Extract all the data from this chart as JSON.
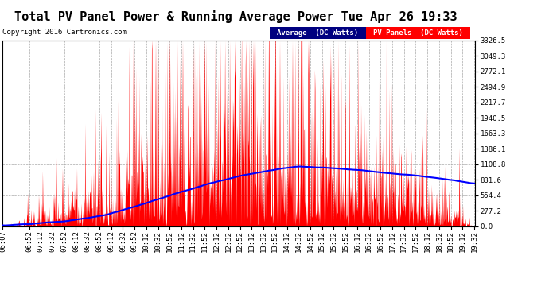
{
  "title": "Total PV Panel Power & Running Average Power Tue Apr 26 19:33",
  "copyright": "Copyright 2016 Cartronics.com",
  "ylabel_right_values": [
    3326.5,
    3049.3,
    2772.1,
    2494.9,
    2217.7,
    1940.5,
    1663.3,
    1386.1,
    1108.8,
    831.6,
    554.4,
    277.2,
    0.0
  ],
  "ymax": 3326.5,
  "ymin": 0.0,
  "bg_color": "#ffffff",
  "plot_bg_color": "#ffffff",
  "grid_color": "#aaaaaa",
  "pv_color": "#ff0000",
  "avg_color": "#0000ff",
  "legend_avg_bg": "#000080",
  "legend_pv_bg": "#ff0000",
  "legend_avg_text": "Average  (DC Watts)",
  "legend_pv_text": "PV Panels  (DC Watts)",
  "title_fontsize": 11,
  "copyright_fontsize": 6.5,
  "tick_fontsize": 6.5,
  "x_tick_labels": [
    "06:07",
    "06:52",
    "07:12",
    "07:32",
    "07:52",
    "08:12",
    "08:32",
    "08:52",
    "09:12",
    "09:32",
    "09:52",
    "10:12",
    "10:32",
    "10:52",
    "11:12",
    "11:32",
    "11:52",
    "12:12",
    "12:32",
    "12:52",
    "13:12",
    "13:32",
    "13:52",
    "14:12",
    "14:32",
    "14:52",
    "15:12",
    "15:32",
    "15:52",
    "16:12",
    "16:32",
    "16:52",
    "17:12",
    "17:32",
    "17:52",
    "18:12",
    "18:32",
    "18:52",
    "19:12",
    "19:32"
  ]
}
